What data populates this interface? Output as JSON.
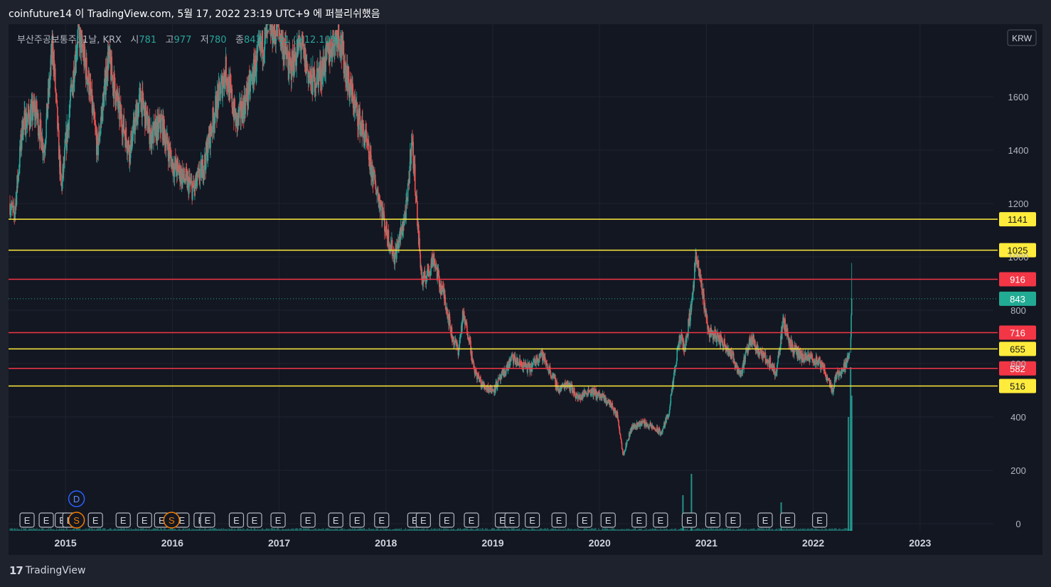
{
  "header": {
    "text": "coinfuture14 이 TradingView.com, 5월 17, 2022 23:19 UTC+9 에 퍼블리쉬했음"
  },
  "legend": {
    "symbol": "부산주공보통주, 1날, KRX",
    "open_label": "시",
    "open": "781",
    "high_label": "고",
    "high": "977",
    "low_label": "저",
    "low": "780",
    "close_label": "종",
    "close": "843",
    "change": "+91 (+12.10%)"
  },
  "currency": "KRW",
  "footer": {
    "brand": "TradingView",
    "logo_mark": "17"
  },
  "colors": {
    "background": "#131722",
    "up": "#26a69a",
    "down": "#ef5350",
    "support_yellow": "#ffeb3b",
    "resistance_red": "#f23645",
    "last_price": "#22ab94"
  },
  "chart_data": {
    "type": "candlestick",
    "ylim": [
      0,
      1850
    ],
    "y_ticks": [
      0,
      200,
      400,
      600,
      800,
      1000,
      1200,
      1400,
      1600
    ],
    "x_ticks": [
      "2015",
      "2016",
      "2017",
      "2018",
      "2019",
      "2020",
      "2021",
      "2022",
      "2023"
    ],
    "x_range": [
      2014.48,
      2023.7
    ],
    "close_path": [
      {
        "t": 2014.48,
        "p": 1200
      },
      {
        "t": 2014.52,
        "p": 1150
      },
      {
        "t": 2014.6,
        "p": 1500
      },
      {
        "t": 2014.72,
        "p": 1550
      },
      {
        "t": 2014.8,
        "p": 1400
      },
      {
        "t": 2014.88,
        "p": 1800
      },
      {
        "t": 2014.96,
        "p": 1250
      },
      {
        "t": 2015.05,
        "p": 1600
      },
      {
        "t": 2015.12,
        "p": 1850
      },
      {
        "t": 2015.22,
        "p": 1650
      },
      {
        "t": 2015.3,
        "p": 1400
      },
      {
        "t": 2015.4,
        "p": 1750
      },
      {
        "t": 2015.5,
        "p": 1550
      },
      {
        "t": 2015.6,
        "p": 1400
      },
      {
        "t": 2015.7,
        "p": 1600
      },
      {
        "t": 2015.8,
        "p": 1450
      },
      {
        "t": 2015.9,
        "p": 1500
      },
      {
        "t": 2016.0,
        "p": 1350
      },
      {
        "t": 2016.1,
        "p": 1300
      },
      {
        "t": 2016.2,
        "p": 1250
      },
      {
        "t": 2016.3,
        "p": 1350
      },
      {
        "t": 2016.4,
        "p": 1550
      },
      {
        "t": 2016.5,
        "p": 1700
      },
      {
        "t": 2016.6,
        "p": 1500
      },
      {
        "t": 2016.7,
        "p": 1600
      },
      {
        "t": 2016.8,
        "p": 1750
      },
      {
        "t": 2016.9,
        "p": 1850
      },
      {
        "t": 2017.0,
        "p": 1850
      },
      {
        "t": 2017.1,
        "p": 1700
      },
      {
        "t": 2017.2,
        "p": 1800
      },
      {
        "t": 2017.3,
        "p": 1650
      },
      {
        "t": 2017.4,
        "p": 1700
      },
      {
        "t": 2017.5,
        "p": 1800
      },
      {
        "t": 2017.55,
        "p": 1850
      },
      {
        "t": 2017.65,
        "p": 1650
      },
      {
        "t": 2017.72,
        "p": 1550
      },
      {
        "t": 2017.8,
        "p": 1450
      },
      {
        "t": 2017.88,
        "p": 1300
      },
      {
        "t": 2017.95,
        "p": 1200
      },
      {
        "t": 2018.0,
        "p": 1100
      },
      {
        "t": 2018.08,
        "p": 1000
      },
      {
        "t": 2018.15,
        "p": 1100
      },
      {
        "t": 2018.2,
        "p": 1200
      },
      {
        "t": 2018.24,
        "p": 1450
      },
      {
        "t": 2018.28,
        "p": 1250
      },
      {
        "t": 2018.3,
        "p": 1100
      },
      {
        "t": 2018.34,
        "p": 900
      },
      {
        "t": 2018.4,
        "p": 950
      },
      {
        "t": 2018.45,
        "p": 1000
      },
      {
        "t": 2018.5,
        "p": 900
      },
      {
        "t": 2018.55,
        "p": 850
      },
      {
        "t": 2018.62,
        "p": 700
      },
      {
        "t": 2018.68,
        "p": 650
      },
      {
        "t": 2018.72,
        "p": 780
      },
      {
        "t": 2018.78,
        "p": 700
      },
      {
        "t": 2018.82,
        "p": 580
      },
      {
        "t": 2018.9,
        "p": 520
      },
      {
        "t": 2019.0,
        "p": 500
      },
      {
        "t": 2019.1,
        "p": 560
      },
      {
        "t": 2019.18,
        "p": 620
      },
      {
        "t": 2019.25,
        "p": 600
      },
      {
        "t": 2019.35,
        "p": 580
      },
      {
        "t": 2019.45,
        "p": 640
      },
      {
        "t": 2019.55,
        "p": 560
      },
      {
        "t": 2019.62,
        "p": 500
      },
      {
        "t": 2019.7,
        "p": 530
      },
      {
        "t": 2019.8,
        "p": 470
      },
      {
        "t": 2019.9,
        "p": 500
      },
      {
        "t": 2020.0,
        "p": 480
      },
      {
        "t": 2020.1,
        "p": 450
      },
      {
        "t": 2020.17,
        "p": 400
      },
      {
        "t": 2020.22,
        "p": 260
      },
      {
        "t": 2020.3,
        "p": 360
      },
      {
        "t": 2020.4,
        "p": 380
      },
      {
        "t": 2020.5,
        "p": 360
      },
      {
        "t": 2020.58,
        "p": 340
      },
      {
        "t": 2020.65,
        "p": 420
      },
      {
        "t": 2020.7,
        "p": 560
      },
      {
        "t": 2020.75,
        "p": 700
      },
      {
        "t": 2020.8,
        "p": 660
      },
      {
        "t": 2020.86,
        "p": 820
      },
      {
        "t": 2020.9,
        "p": 1000
      },
      {
        "t": 2020.96,
        "p": 880
      },
      {
        "t": 2021.02,
        "p": 720
      },
      {
        "t": 2021.1,
        "p": 700
      },
      {
        "t": 2021.2,
        "p": 660
      },
      {
        "t": 2021.32,
        "p": 560
      },
      {
        "t": 2021.42,
        "p": 700
      },
      {
        "t": 2021.5,
        "p": 640
      },
      {
        "t": 2021.6,
        "p": 600
      },
      {
        "t": 2021.65,
        "p": 560
      },
      {
        "t": 2021.72,
        "p": 760
      },
      {
        "t": 2021.8,
        "p": 660
      },
      {
        "t": 2021.9,
        "p": 620
      },
      {
        "t": 2022.0,
        "p": 620
      },
      {
        "t": 2022.1,
        "p": 580
      },
      {
        "t": 2022.18,
        "p": 500
      },
      {
        "t": 2022.22,
        "p": 560
      },
      {
        "t": 2022.3,
        "p": 590
      },
      {
        "t": 2022.34,
        "p": 660
      },
      {
        "t": 2022.36,
        "p": 843
      }
    ],
    "last_candle": {
      "open": 781,
      "high": 977,
      "low": 780,
      "close": 843
    },
    "levels": [
      {
        "value": 1141,
        "label": "1141",
        "color": "#ffeb3b",
        "text_color": "#131722"
      },
      {
        "value": 1025,
        "label": "1025",
        "color": "#ffeb3b",
        "text_color": "#131722"
      },
      {
        "value": 916,
        "label": "916",
        "color": "#f23645",
        "text_color": "#ffffff"
      },
      {
        "value": 716,
        "label": "716",
        "color": "#f23645",
        "text_color": "#ffffff"
      },
      {
        "value": 655,
        "label": "655",
        "color": "#ffeb3b",
        "text_color": "#131722"
      },
      {
        "value": 582,
        "label": "582",
        "color": "#f23645",
        "text_color": "#ffffff"
      },
      {
        "value": 516,
        "label": "516",
        "color": "#ffeb3b",
        "text_color": "#131722"
      }
    ],
    "last_price": {
      "value": 843,
      "label": "843"
    },
    "events": {
      "earnings_label": "E",
      "dividend_label": "D",
      "split_label": "S",
      "earnings_times": [
        2014.64,
        2014.82,
        2014.97,
        2015.04,
        2015.28,
        2015.54,
        2015.74,
        2015.9,
        2016.09,
        2016.27,
        2016.33,
        2016.6,
        2016.77,
        2016.99,
        2017.27,
        2017.53,
        2017.73,
        2017.96,
        2018.27,
        2018.35,
        2018.57,
        2018.8,
        2019.09,
        2019.18,
        2019.37,
        2019.62,
        2019.86,
        2020.08,
        2020.37,
        2020.57,
        2020.84,
        2021.06,
        2021.25,
        2021.55,
        2021.76,
        2022.06
      ],
      "dividend_time": 2014.97,
      "split_times": [
        2014.97,
        2015.86
      ]
    },
    "volume_spikes": [
      {
        "t": 2022.33,
        "v": 0.32
      },
      {
        "t": 2022.35,
        "v": 0.46
      },
      {
        "t": 2022.36,
        "v": 0.38
      },
      {
        "t": 2020.86,
        "v": 0.16
      },
      {
        "t": 2020.78,
        "v": 0.1
      },
      {
        "t": 2021.7,
        "v": 0.08
      }
    ]
  }
}
